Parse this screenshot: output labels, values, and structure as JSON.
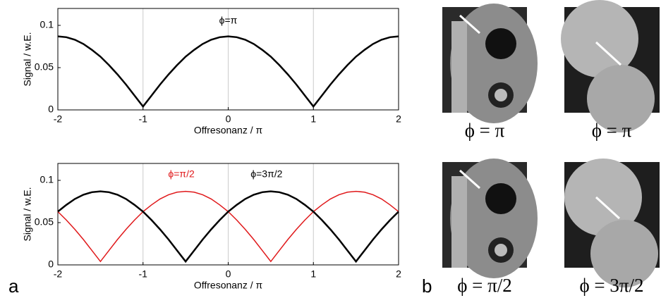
{
  "chart_data": [
    {
      "type": "line",
      "xlabel": "Offresonanz / π",
      "ylabel": "Signal / w.E.",
      "x": [
        -2,
        -1.9,
        -1.8,
        -1.7,
        -1.6,
        -1.5,
        -1.4,
        -1.3,
        -1.2,
        -1.1,
        -1,
        -0.9,
        -0.8,
        -0.7,
        -0.6,
        -0.5,
        -0.4,
        -0.3,
        -0.2,
        -0.1,
        0,
        0.1,
        0.2,
        0.3,
        0.4,
        0.5,
        0.6,
        0.7,
        0.8,
        0.9,
        1,
        1.1,
        1.2,
        1.3,
        1.4,
        1.5,
        1.6,
        1.7,
        1.8,
        1.9,
        2
      ],
      "series": [
        {
          "name": "ϕ=π",
          "color": "#000000",
          "values": [
            0.087,
            0.086,
            0.083,
            0.078,
            0.071,
            0.063,
            0.053,
            0.042,
            0.03,
            0.017,
            0.004,
            0.017,
            0.03,
            0.042,
            0.053,
            0.063,
            0.071,
            0.078,
            0.083,
            0.086,
            0.087,
            0.086,
            0.083,
            0.078,
            0.071,
            0.063,
            0.053,
            0.042,
            0.03,
            0.017,
            0.004,
            0.017,
            0.03,
            0.042,
            0.053,
            0.063,
            0.071,
            0.078,
            0.083,
            0.086,
            0.087
          ]
        }
      ],
      "xlim": [
        -2,
        2
      ],
      "ylim": [
        0,
        0.12
      ],
      "xticks": [
        -2,
        -1,
        0,
        1,
        2
      ],
      "yticks": [
        0,
        0.05,
        0.1
      ],
      "grid": true
    },
    {
      "type": "line",
      "xlabel": "Offresonanz / π",
      "ylabel": "Signal / w.E.",
      "x": [
        -2,
        -1.9,
        -1.8,
        -1.7,
        -1.6,
        -1.5,
        -1.4,
        -1.3,
        -1.2,
        -1.1,
        -1,
        -0.9,
        -0.8,
        -0.7,
        -0.6,
        -0.5,
        -0.4,
        -0.3,
        -0.2,
        -0.1,
        0,
        0.1,
        0.2,
        0.3,
        0.4,
        0.5,
        0.6,
        0.7,
        0.8,
        0.9,
        1,
        1.1,
        1.2,
        1.3,
        1.4,
        1.5,
        1.6,
        1.7,
        1.8,
        1.9,
        2
      ],
      "series": [
        {
          "name": "ϕ=π/2",
          "color": "#e0191b",
          "values": [
            0.063,
            0.053,
            0.042,
            0.03,
            0.017,
            0.004,
            0.017,
            0.03,
            0.042,
            0.053,
            0.063,
            0.071,
            0.078,
            0.083,
            0.086,
            0.087,
            0.086,
            0.083,
            0.078,
            0.071,
            0.063,
            0.053,
            0.042,
            0.03,
            0.017,
            0.004,
            0.017,
            0.03,
            0.042,
            0.053,
            0.063,
            0.071,
            0.078,
            0.083,
            0.086,
            0.087,
            0.086,
            0.083,
            0.078,
            0.071,
            0.063
          ]
        },
        {
          "name": "ϕ=3π/2",
          "color": "#000000",
          "values": [
            0.063,
            0.071,
            0.078,
            0.083,
            0.086,
            0.087,
            0.086,
            0.083,
            0.078,
            0.071,
            0.063,
            0.053,
            0.042,
            0.03,
            0.017,
            0.004,
            0.017,
            0.03,
            0.042,
            0.053,
            0.063,
            0.071,
            0.078,
            0.083,
            0.086,
            0.087,
            0.086,
            0.083,
            0.078,
            0.071,
            0.063,
            0.053,
            0.042,
            0.03,
            0.017,
            0.004,
            0.017,
            0.03,
            0.042,
            0.053,
            0.063
          ]
        }
      ],
      "xlim": [
        -2,
        2
      ],
      "ylim": [
        0,
        0.12
      ],
      "xticks": [
        -2,
        -1,
        0,
        1,
        2
      ],
      "yticks": [
        0,
        0.05,
        0.1
      ],
      "grid": true
    }
  ],
  "panel_labels": [
    "a",
    "b"
  ],
  "images": [
    {
      "caption": "ϕ = π"
    },
    {
      "caption": "ϕ = π"
    },
    {
      "caption": "ϕ = π/2"
    },
    {
      "caption": "ϕ = 3π/2"
    }
  ]
}
